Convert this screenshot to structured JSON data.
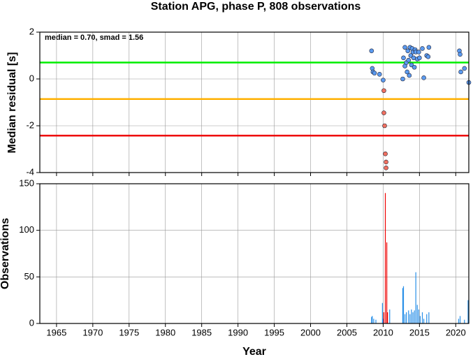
{
  "chart_data": [
    {
      "type": "scatter",
      "title": "Station APG, phase P, 808 observations",
      "ylabel": "Median residual [s]",
      "annotation": "median = 0.70, smad = 1.56",
      "xlim": [
        1962.7,
        2021.8
      ],
      "ylim": [
        -4,
        2
      ],
      "yticks": [
        -4,
        -2,
        0,
        2
      ],
      "grid": true,
      "hlines": [
        {
          "value": 0.7,
          "color": "#00ee00"
        },
        {
          "value": -0.86,
          "color": "#ffb000"
        },
        {
          "value": -2.42,
          "color": "#ee0000"
        }
      ],
      "series": [
        {
          "color": "#5b9bf0",
          "x": [
            2008.4,
            2008.5,
            2008.6,
            2008.8,
            2009.5,
            2010.0,
            2012.7,
            2012.8,
            2013.0,
            2013.0,
            2013.2,
            2013.3,
            2013.4,
            2013.5,
            2013.6,
            2013.7,
            2013.8,
            2013.9,
            2014.0,
            2014.1,
            2014.2,
            2014.3,
            2014.4,
            2014.5,
            2014.7,
            2014.9,
            2015.0,
            2015.4,
            2015.6,
            2016.0,
            2016.2,
            2016.3,
            2020.5,
            2020.6,
            2020.7,
            2021.2,
            2021.8
          ],
          "values": [
            1.2,
            0.45,
            0.3,
            0.25,
            0.2,
            -0.05,
            0.0,
            0.9,
            1.35,
            0.55,
            0.7,
            0.3,
            1.2,
            0.8,
            0.15,
            1.35,
            1.0,
            0.6,
            1.3,
            1.15,
            0.9,
            0.5,
            1.25,
            1.15,
            0.85,
            1.15,
            0.9,
            1.3,
            0.05,
            1.0,
            0.95,
            1.35,
            1.2,
            1.05,
            0.3,
            0.45,
            -0.15
          ]
        },
        {
          "color": "#f07060",
          "x": [
            2010.1,
            2010.1,
            2010.2,
            2010.3,
            2010.4,
            2010.4
          ],
          "values": [
            -0.5,
            -1.45,
            -2.0,
            -3.2,
            -3.55,
            -3.8
          ]
        }
      ]
    },
    {
      "type": "bar",
      "xlabel": "Year",
      "ylabel": "Observations",
      "xlim": [
        1962.7,
        2021.8
      ],
      "xticks": [
        1965,
        1970,
        1975,
        1980,
        1985,
        1990,
        1995,
        2000,
        2005,
        2010,
        2015,
        2020
      ],
      "ylim": [
        0,
        150
      ],
      "yticks": [
        0,
        50,
        100,
        150
      ],
      "grid": true,
      "series": [
        {
          "color": "#2a90e8",
          "x": [
            2008.4,
            2008.5,
            2008.7,
            2009.0,
            2009.9,
            2010.0,
            2010.9,
            2012.7,
            2012.8,
            2013.0,
            2013.2,
            2013.5,
            2013.7,
            2013.9,
            2014.1,
            2014.3,
            2014.5,
            2014.7,
            2014.9,
            2015.1,
            2015.4,
            2015.6,
            2016.0,
            2016.3,
            2020.4,
            2020.6,
            2021.2,
            2021.7
          ],
          "values": [
            7,
            8,
            5,
            4,
            22,
            5,
            15,
            38,
            40,
            10,
            12,
            14,
            10,
            15,
            12,
            14,
            55,
            20,
            15,
            8,
            12,
            5,
            10,
            12,
            5,
            8,
            4,
            25
          ]
        },
        {
          "color": "#ee0000",
          "x": [
            2010.1,
            2010.3,
            2010.5,
            2010.6
          ],
          "values": [
            12,
            140,
            87,
            12
          ]
        }
      ]
    }
  ]
}
